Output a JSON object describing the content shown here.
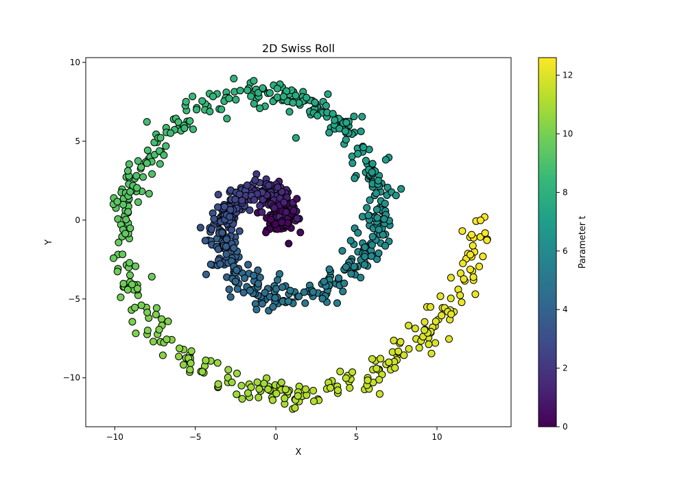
{
  "chart_data": {
    "type": "scatter",
    "title": "2D Swiss Roll",
    "xlabel": "X",
    "ylabel": "Y",
    "xlim": [
      -11.8,
      14.6
    ],
    "ylim": [
      -13.1,
      10.3
    ],
    "xticks": [
      -10,
      -5,
      0,
      5,
      10
    ],
    "yticks": [
      -10,
      -5,
      0,
      5,
      10
    ],
    "grid": false,
    "colormap": "viridis",
    "marker_edge_color": "#000000",
    "colorbar": {
      "label": "Parameter t",
      "range": [
        0,
        12.6
      ],
      "ticks": [
        0,
        2,
        4,
        6,
        8,
        10,
        12
      ]
    },
    "series": [
      {
        "generator": {
          "curve": "x = t*cos(t), y = t*sin(t)",
          "t_range": [
            0,
            12.57
          ],
          "n_points": 1000,
          "noise_sd": 0.5
        }
      }
    ]
  }
}
